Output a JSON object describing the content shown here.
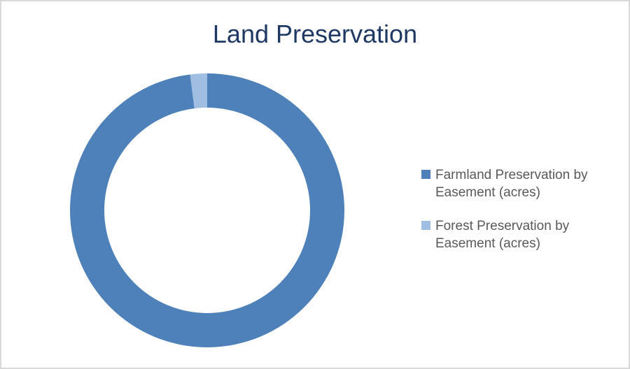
{
  "window": {
    "background": "#ffffff",
    "border_color": "#d9d9d9"
  },
  "chart": {
    "title": "Land Preservation",
    "title_color": "#1f3864"
  },
  "legend": {
    "position": "right",
    "text_color": "#595959",
    "items": [
      {
        "label": "Farmland Preservation by Easement (acres)",
        "color": "#4e81ba"
      },
      {
        "label": "Forest Preservation by Easement (acres)",
        "color": "#a0bee1"
      }
    ]
  },
  "chart_data": {
    "type": "pie",
    "subtype": "donut",
    "title": "Land Preservation",
    "categories": [
      "Farmland Preservation by Easement (acres)",
      "Forest Preservation by Easement (acres)"
    ],
    "values_percent": [
      98,
      2
    ],
    "colors": [
      "#4e81ba",
      "#a0bee1"
    ],
    "hole_ratio": 0.75,
    "start_angle_deg": 0,
    "direction": "clockwise",
    "legend_position": "right",
    "data_labels": false,
    "grid": false
  }
}
